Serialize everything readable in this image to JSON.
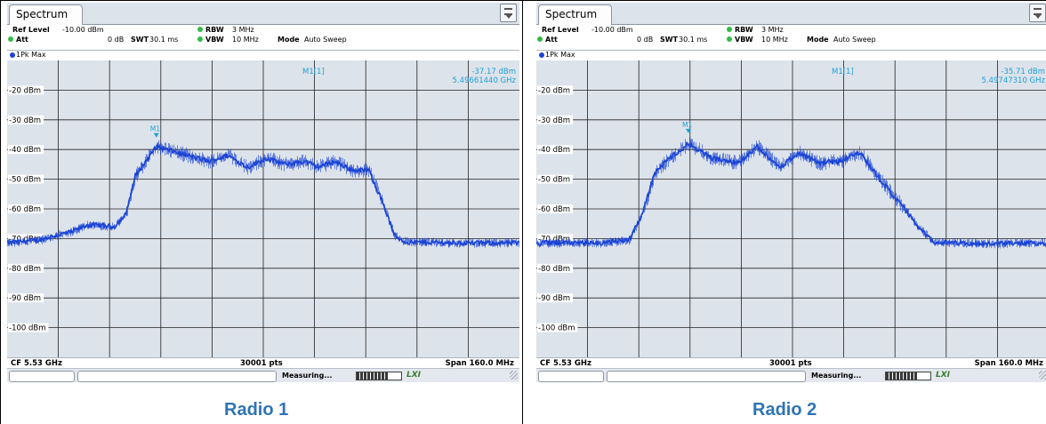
{
  "app": {
    "tab_label": "Spectrum"
  },
  "colors": {
    "trace": "#1a44d6",
    "marker": "#1da1d6",
    "caption": "#2e74b5",
    "grid": "#222222"
  },
  "panels": [
    {
      "caption": "Radio 1",
      "settings": {
        "ref_level_label": "Ref Level",
        "ref_level_value": "-10.00 dBm",
        "att_label": "Att",
        "att_value": "0 dB",
        "swt_label": "SWT",
        "swt_value": "30.1 ms",
        "rbw_label": "RBW",
        "rbw_value": "3 MHz",
        "vbw_label": "VBW",
        "vbw_value": "10 MHz",
        "mode_label": "Mode",
        "mode_value": "Auto Sweep"
      },
      "trace_label": "1Pk Max",
      "marker": {
        "name": "M1[1]",
        "level": "-37.17 dBm",
        "freq": "5.49661440 GHz",
        "tag": "M1"
      },
      "status": {
        "cf": "CF 5.53 GHz",
        "pts": "30001 pts",
        "span": "Span 160.0 MHz"
      },
      "taskbar": {
        "measuring": "Measuring...",
        "lxi": "LXI",
        "progress": 0.7
      },
      "chart_data": {
        "type": "line",
        "x_range_ghz": [
          5.45,
          5.61
        ],
        "ylim": [
          -110,
          -10
        ],
        "y_ticks": [
          "-20 dBm",
          "-30 dBm",
          "-40 dBm",
          "-50 dBm",
          "-60 dBm",
          "-70 dBm",
          "-80 dBm",
          "-90 dBm",
          "-100 dBm"
        ],
        "x_ghz": [
          5.45,
          5.46,
          5.465,
          5.47,
          5.475,
          5.478,
          5.4835,
          5.487,
          5.49,
          5.4966,
          5.503,
          5.508,
          5.513,
          5.519,
          5.525,
          5.531,
          5.537,
          5.543,
          5.547,
          5.552,
          5.558,
          5.563,
          5.567,
          5.571,
          5.574,
          5.576,
          5.58,
          5.59,
          5.61
        ],
        "y_dbm": [
          -71.5,
          -70.5,
          -69,
          -67.8,
          -65.5,
          -65.5,
          -66,
          -62,
          -49,
          -39,
          -41,
          -42.5,
          -44,
          -42,
          -46,
          -43,
          -45,
          -44,
          -46,
          -44,
          -47,
          -47,
          -57,
          -69,
          -71,
          -71.3,
          -71.2,
          -71.5,
          -71.5
        ],
        "marker": {
          "x_ghz": 5.4966,
          "y_dbm": -37.17
        }
      }
    },
    {
      "caption": "Radio 2",
      "settings": {
        "ref_level_label": "Ref Level",
        "ref_level_value": "-10.00 dBm",
        "att_label": "Att",
        "att_value": "0 dB",
        "swt_label": "SWT",
        "swt_value": "30.1 ms",
        "rbw_label": "RBW",
        "rbw_value": "3 MHz",
        "vbw_label": "VBW",
        "vbw_value": "10 MHz",
        "mode_label": "Mode",
        "mode_value": "Auto Sweep"
      },
      "trace_label": "1Pk Max",
      "marker": {
        "name": "M1[1]",
        "level": "-35.71 dBm",
        "freq": "5.49747310 GHz",
        "tag": "M1"
      },
      "status": {
        "cf": "CF 5.53 GHz",
        "pts": "30001 pts",
        "span": "Span 160.0 MHz"
      },
      "taskbar": {
        "measuring": "Measuring...",
        "lxi": "LXI",
        "progress": 0.7
      },
      "chart_data": {
        "type": "line",
        "x_range_ghz": [
          5.45,
          5.61
        ],
        "ylim": [
          -110,
          -10
        ],
        "y_ticks": [
          "-20 dBm",
          "-30 dBm",
          "-40 dBm",
          "-50 dBm",
          "-60 dBm",
          "-70 dBm",
          "-80 dBm",
          "-90 dBm",
          "-100 dBm"
        ],
        "x_ghz": [
          5.45,
          5.47,
          5.479,
          5.483,
          5.487,
          5.491,
          5.4975,
          5.505,
          5.513,
          5.519,
          5.526,
          5.532,
          5.538,
          5.545,
          5.551,
          5.558,
          5.565,
          5.57,
          5.574,
          5.578,
          5.582,
          5.59,
          5.61
        ],
        "y_dbm": [
          -71.5,
          -71.5,
          -70.5,
          -62,
          -48,
          -43.5,
          -38,
          -43,
          -44.5,
          -39,
          -46,
          -41,
          -44.5,
          -44,
          -41,
          -51,
          -60,
          -67,
          -71,
          -71.5,
          -71.4,
          -71.8,
          -71.5
        ],
        "marker": {
          "x_ghz": 5.4975,
          "y_dbm": -35.71
        }
      }
    }
  ]
}
